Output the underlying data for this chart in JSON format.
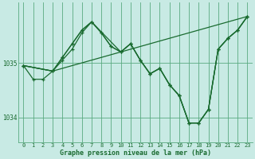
{
  "background_color": "#c8eae4",
  "grid_color": "#5aaa80",
  "line_color": "#1a6b30",
  "ylabel_color": "#1a6b30",
  "xlabel": "Graphe pression niveau de la mer (hPa)",
  "yticks": [
    1034,
    1035
  ],
  "ylim": [
    1033.55,
    1036.1
  ],
  "xlim": [
    -0.5,
    23.5
  ],
  "line1_x": [
    0,
    1,
    2,
    3,
    4,
    5,
    6,
    7,
    8,
    9,
    10,
    11,
    12,
    13,
    14,
    15,
    16,
    17,
    18,
    19,
    20,
    21,
    22,
    23
  ],
  "line1_y": [
    1034.95,
    1034.7,
    1034.7,
    1034.85,
    1035.05,
    1035.25,
    1035.55,
    1035.75,
    1035.55,
    1035.3,
    1035.2,
    1035.35,
    1035.05,
    1034.8,
    1034.9,
    1034.6,
    1034.4,
    1033.9,
    1033.9,
    1034.15,
    1035.25,
    1035.45,
    1035.6,
    1035.85
  ],
  "line2_x": [
    0,
    3,
    4,
    5,
    6,
    7,
    10,
    11,
    12,
    13,
    14,
    15,
    16,
    17,
    18,
    19,
    20,
    21,
    22,
    23
  ],
  "line2_y": [
    1034.95,
    1034.85,
    1035.1,
    1035.35,
    1035.6,
    1035.75,
    1035.2,
    1035.35,
    1035.05,
    1034.8,
    1034.9,
    1034.6,
    1034.4,
    1033.9,
    1033.9,
    1034.15,
    1035.25,
    1035.45,
    1035.6,
    1035.85
  ],
  "line3_x": [
    0,
    3,
    4,
    5,
    6,
    7,
    8,
    9,
    10,
    11,
    12,
    13,
    14,
    15,
    16,
    17,
    18,
    19,
    20,
    21,
    22,
    23
  ],
  "line3_y": [
    1034.95,
    1034.85,
    1035.1,
    1035.35,
    1035.6,
    1035.75,
    1035.55,
    1035.3,
    1035.2,
    1035.35,
    1035.05,
    1034.8,
    1034.9,
    1034.6,
    1034.4,
    1033.9,
    1033.9,
    1034.15,
    1035.25,
    1035.45,
    1035.6,
    1035.85
  ],
  "line4_x": [
    0,
    3,
    23
  ],
  "line4_y": [
    1034.95,
    1034.85,
    1035.85
  ],
  "lw": 0.9,
  "ms": 3.5,
  "fontsize_tick": 5.5,
  "fontsize_xlabel": 6.0
}
